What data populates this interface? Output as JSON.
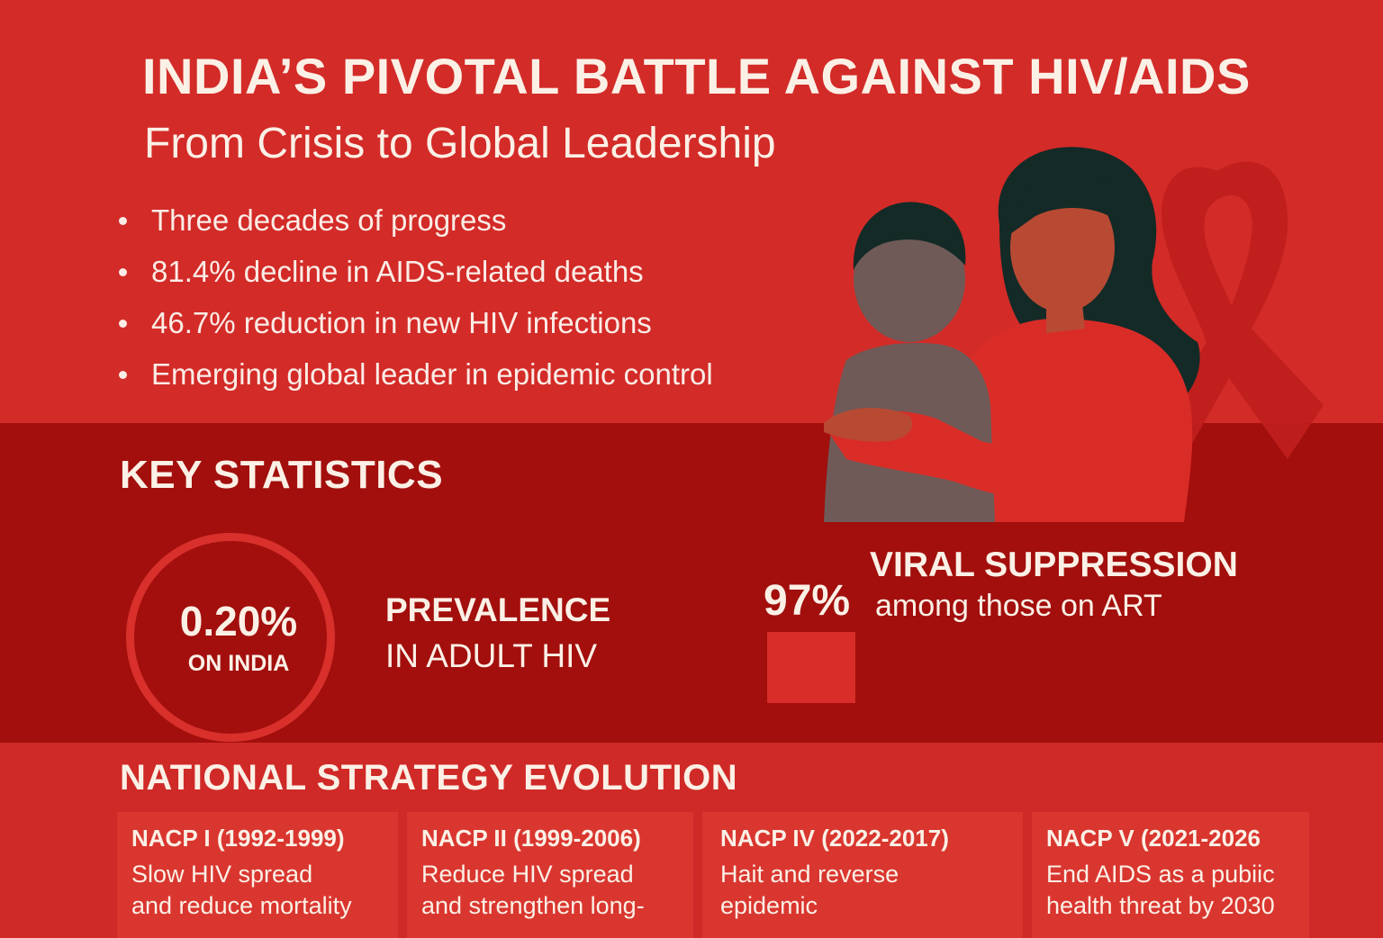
{
  "header": {
    "title": "INDIA’S PIVOTAL BATTLE AGAINST HIV/AIDS",
    "subtitle": "From Crisis to Global Leadership"
  },
  "highlights": [
    "Three decades of progress",
    "81.4% decline in AIDS-related deaths",
    "46.7% reduction in new HIV infections",
    "Emerging global leader in epidemic control"
  ],
  "key_statistics": {
    "heading": "KEY STATISTICS",
    "prevalence": {
      "value": "0.20%",
      "value_sub": "ON INDIA",
      "label": "PREVALENCE",
      "sublabel": "IN ADULT HIV"
    },
    "viral_suppression": {
      "value": "97%",
      "label": "VIRAL SUPPRESSION",
      "sublabel": "among those on ART"
    }
  },
  "strategy": {
    "heading": "NATIONAL STRATEGY EVOLUTION",
    "cards": [
      {
        "title": "NACP I (1992-1999)",
        "desc": "Slow HIV spread\nand reduce mortality"
      },
      {
        "title": "NACP II (1999-2006)",
        "desc": "Reduce HIV spread\nand strengthen long-"
      },
      {
        "title": "NACP IV (2022-2017)",
        "desc": "Hait and reverse\nepidemic"
      },
      {
        "title": "NACP V (2021-2026",
        "desc": "End AIDS as a pubiic\nhealth threat by 2030"
      }
    ]
  },
  "colors": {
    "background": "#cf2a27",
    "band": "#a20f0d",
    "accent": "#d9302c",
    "text": "#fbf0e6",
    "ribbon": "#c8201d"
  },
  "icons": [
    "awareness-ribbon-icon",
    "mother-child-illustration"
  ]
}
